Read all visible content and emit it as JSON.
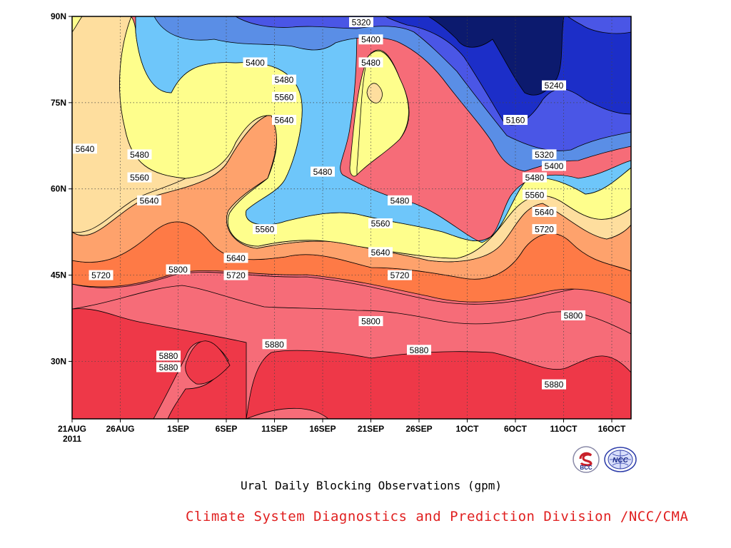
{
  "chart_data": {
    "type": "heatmap",
    "title": "Ural Daily Blocking Observations (gpm)",
    "x_ticks": [
      "21AUG",
      "26AUG",
      "1SEP",
      "6SEP",
      "11SEP",
      "16SEP",
      "21SEP",
      "26SEP",
      "1OCT",
      "6OCT",
      "11OCT",
      "16OCT"
    ],
    "x_year": "2011",
    "y_ticks": [
      "30N",
      "45N",
      "60N",
      "75N",
      "90N"
    ],
    "y_range": [
      "20N",
      "90N"
    ],
    "x_range": [
      "21AUG2011",
      "18OCT2011"
    ],
    "grid": true,
    "contour_levels": [
      5160,
      5240,
      5320,
      5400,
      5480,
      5560,
      5640,
      5720,
      5800,
      5880
    ],
    "fill_colors": {
      "below_5160": "#0c1a6e",
      "5160": "#1c2ec8",
      "5240": "#4a56e6",
      "5320": "#5a8ee6",
      "5400": "#6ec6fa",
      "5480": "#fefe8c",
      "5560": "#fede9e",
      "5640": "#fea26c",
      "5720": "#fe7a46",
      "5800": "#f66c78",
      "5880": "#ee3848"
    },
    "contour_labels": [
      {
        "text": "5320",
        "date": "20SEP",
        "lat": "89N"
      },
      {
        "text": "5400",
        "date": "21SEP",
        "lat": "86N"
      },
      {
        "text": "5480",
        "date": "21SEP",
        "lat": "82N"
      },
      {
        "text": "5400",
        "date": "9SEP",
        "lat": "82N"
      },
      {
        "text": "5480",
        "date": "12SEP",
        "lat": "79N"
      },
      {
        "text": "5560",
        "date": "12SEP",
        "lat": "76N"
      },
      {
        "text": "5640",
        "date": "12SEP",
        "lat": "72N"
      },
      {
        "text": "5240",
        "date": "10OCT",
        "lat": "78N"
      },
      {
        "text": "5160",
        "date": "6OCT",
        "lat": "72N"
      },
      {
        "text": "5640",
        "date": "21AUG",
        "lat": "67N"
      },
      {
        "text": "5480",
        "date": "28AUG",
        "lat": "66N"
      },
      {
        "text": "5560",
        "date": "28AUG",
        "lat": "62N"
      },
      {
        "text": "5640",
        "date": "29AUG",
        "lat": "58N"
      },
      {
        "text": "5480",
        "date": "16SEP",
        "lat": "63N"
      },
      {
        "text": "5480",
        "date": "24SEP",
        "lat": "58N"
      },
      {
        "text": "5320",
        "date": "9OCT",
        "lat": "66N"
      },
      {
        "text": "5400",
        "date": "10OCT",
        "lat": "64N"
      },
      {
        "text": "5480",
        "date": "8OCT",
        "lat": "62N"
      },
      {
        "text": "5560",
        "date": "8OCT",
        "lat": "59N"
      },
      {
        "text": "5640",
        "date": "9OCT",
        "lat": "56N"
      },
      {
        "text": "5720",
        "date": "9OCT",
        "lat": "53N"
      },
      {
        "text": "5560",
        "date": "10SEP",
        "lat": "53N"
      },
      {
        "text": "5560",
        "date": "22SEP",
        "lat": "54N"
      },
      {
        "text": "5640",
        "date": "7SEP",
        "lat": "48N"
      },
      {
        "text": "5640",
        "date": "22SEP",
        "lat": "49N"
      },
      {
        "text": "5720",
        "date": "24AUG",
        "lat": "45N"
      },
      {
        "text": "5800",
        "date": "1SEP",
        "lat": "46N"
      },
      {
        "text": "5720",
        "date": "7SEP",
        "lat": "45N"
      },
      {
        "text": "5720",
        "date": "24SEP",
        "lat": "45N"
      },
      {
        "text": "5800",
        "date": "21SEP",
        "lat": "37N"
      },
      {
        "text": "5800",
        "date": "12OCT",
        "lat": "38N"
      },
      {
        "text": "5880",
        "date": "11SEP",
        "lat": "33N"
      },
      {
        "text": "5880",
        "date": "26SEP",
        "lat": "32N"
      },
      {
        "text": "5880",
        "date": "31AUG",
        "lat": "31N"
      },
      {
        "text": "5880",
        "date": "31AUG",
        "lat": "29N"
      },
      {
        "text": "5880",
        "date": "10OCT",
        "lat": "26N"
      }
    ]
  },
  "logos": {
    "bcc": {
      "text": "BCC",
      "icon": "bcc-logo-icon"
    },
    "ncc": {
      "text": "NCC",
      "icon": "ncc-logo-icon"
    }
  },
  "credit": {
    "text": "Climate System Diagnostics and Prediction Division /NCC/CMA",
    "color": "#e02020"
  }
}
